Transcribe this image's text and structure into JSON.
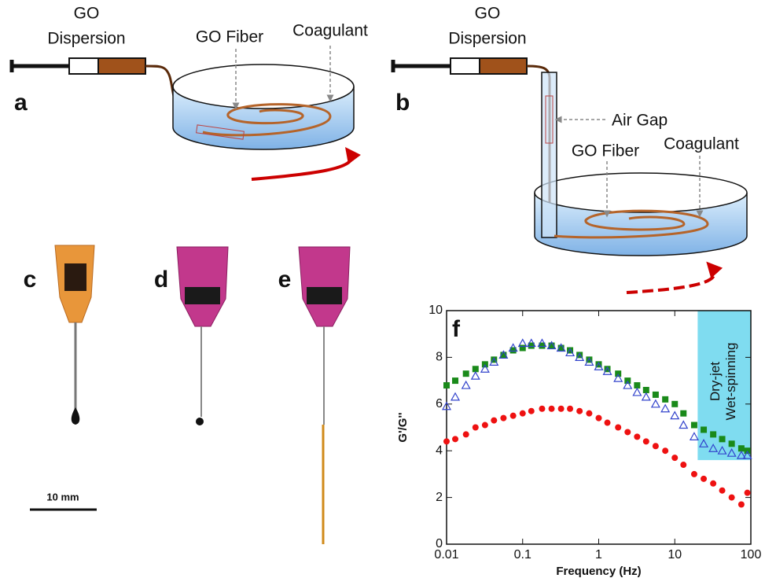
{
  "panel_a": {
    "label": "a",
    "dispersion_label": [
      "GO",
      "Dispersion"
    ],
    "fiber_label": "GO Fiber",
    "coagulant_label": "Coagulant"
  },
  "panel_b": {
    "label": "b",
    "dispersion_label": [
      "GO",
      "Dispersion"
    ],
    "air_gap_label": "Air Gap",
    "fiber_label": "GO Fiber",
    "coagulant_label": "Coagulant"
  },
  "panel_c": {
    "label": "c"
  },
  "panel_d": {
    "label": "d"
  },
  "panel_e": {
    "label": "e"
  },
  "scale_bar": {
    "label": "10 mm"
  },
  "chart_data": {
    "type": "scatter",
    "panel_label": "f",
    "xlabel": "Frequency (Hz)",
    "ylabel": "G'/G''",
    "xscale": "log",
    "xlim": [
      0.01,
      100
    ],
    "ylim": [
      0,
      10
    ],
    "xticks": [
      0.01,
      0.1,
      1,
      10,
      100
    ],
    "yticks": [
      0,
      2,
      4,
      6,
      8,
      10
    ],
    "shaded_region": {
      "label": "Dry-jet Wet-spinning",
      "xlim": [
        20,
        100
      ],
      "ylim": [
        3.6,
        10
      ],
      "color": "#7fdcf0"
    },
    "x": [
      0.01,
      0.013,
      0.018,
      0.024,
      0.032,
      0.042,
      0.056,
      0.075,
      0.1,
      0.13,
      0.18,
      0.24,
      0.32,
      0.42,
      0.56,
      0.75,
      1,
      1.3,
      1.8,
      2.4,
      3.2,
      4.2,
      5.6,
      7.5,
      10,
      13,
      18,
      24,
      32,
      42,
      56,
      75,
      90
    ],
    "series": [
      {
        "color": "#1a8a1a",
        "marker": "square",
        "values": [
          6.8,
          7.0,
          7.3,
          7.5,
          7.7,
          7.9,
          8.1,
          8.3,
          8.4,
          8.5,
          8.5,
          8.5,
          8.4,
          8.3,
          8.1,
          7.9,
          7.7,
          7.5,
          7.3,
          7.0,
          6.8,
          6.6,
          6.4,
          6.2,
          6.0,
          5.6,
          5.1,
          4.9,
          4.7,
          4.5,
          4.3,
          4.1,
          4.0
        ]
      },
      {
        "color": "#3344cc",
        "marker": "triangle",
        "values": [
          5.9,
          6.3,
          6.8,
          7.2,
          7.5,
          7.8,
          8.1,
          8.4,
          8.6,
          8.6,
          8.6,
          8.5,
          8.4,
          8.2,
          8.0,
          7.8,
          7.6,
          7.4,
          7.1,
          6.8,
          6.5,
          6.3,
          6.0,
          5.8,
          5.5,
          5.1,
          4.6,
          4.3,
          4.1,
          4.0,
          3.9,
          3.8,
          3.8
        ]
      },
      {
        "color": "#ee1111",
        "marker": "circle",
        "values": [
          4.4,
          4.5,
          4.7,
          5.0,
          5.1,
          5.3,
          5.4,
          5.5,
          5.6,
          5.7,
          5.8,
          5.8,
          5.8,
          5.8,
          5.7,
          5.6,
          5.4,
          5.2,
          5.0,
          4.8,
          4.6,
          4.4,
          4.2,
          4.0,
          3.7,
          3.4,
          3.0,
          2.8,
          2.6,
          2.3,
          2.0,
          1.7,
          2.2
        ]
      }
    ]
  }
}
